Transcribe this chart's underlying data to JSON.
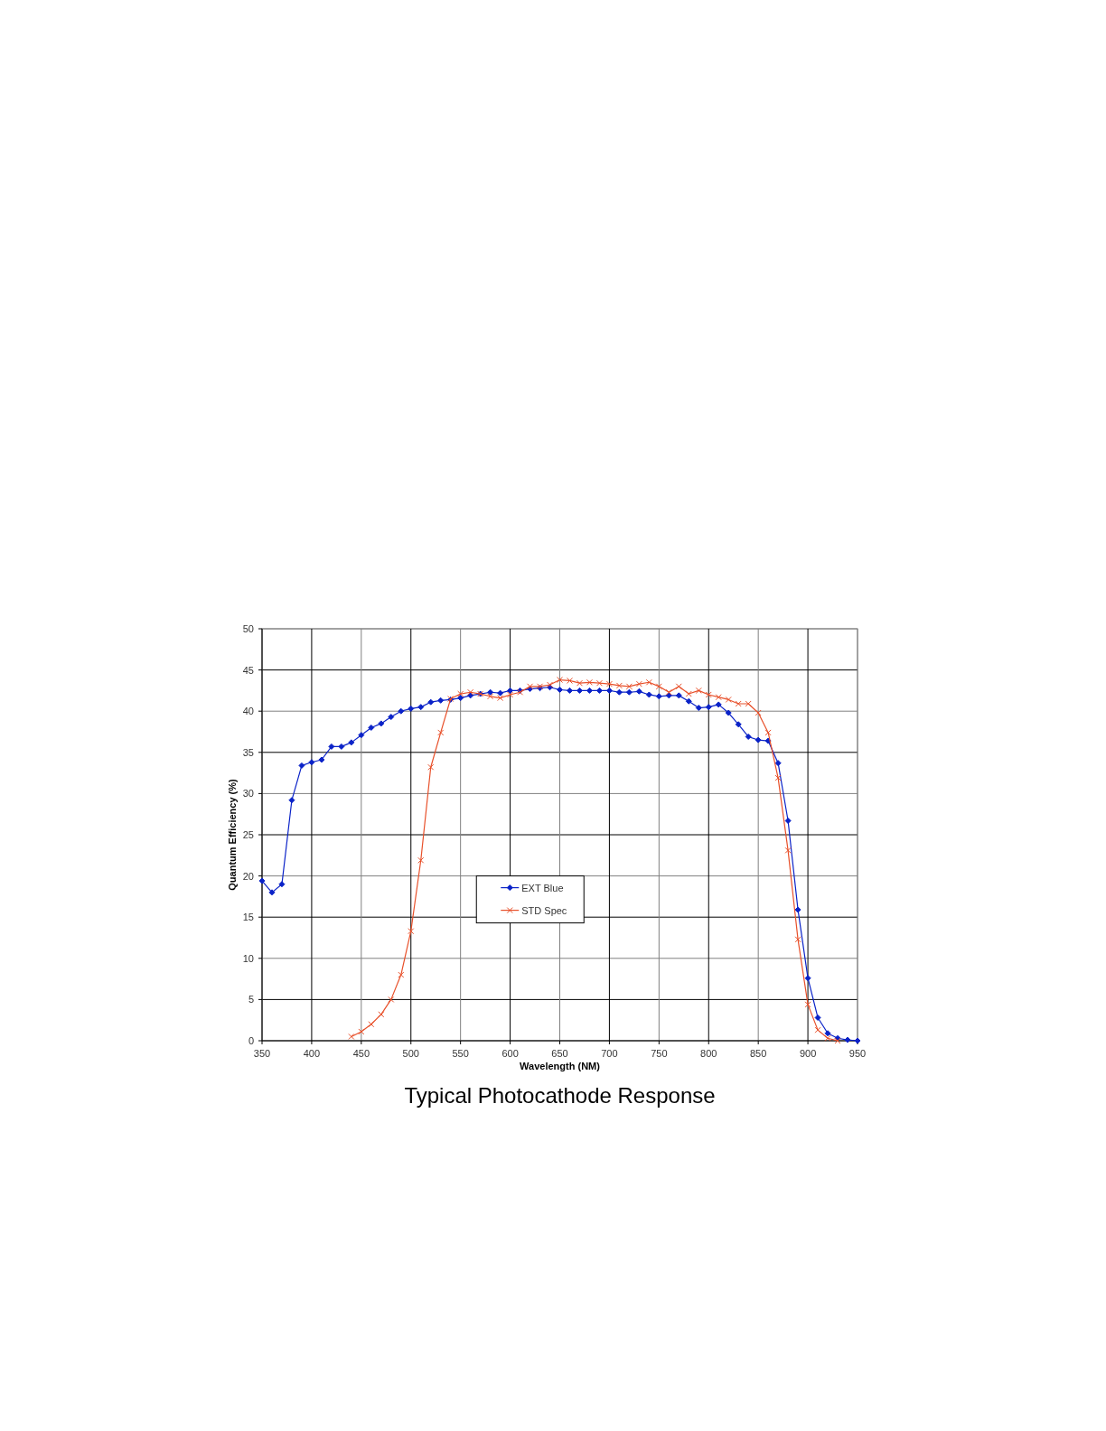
{
  "chart_data": {
    "type": "line",
    "title": "Typical Photocathode Response",
    "xlabel": "Wavelength (NM)",
    "ylabel": "Quantum Efficiency (%)",
    "xlim": [
      350,
      950
    ],
    "xticks": [
      350,
      400,
      450,
      500,
      550,
      600,
      650,
      700,
      750,
      800,
      850,
      900,
      950
    ],
    "ylim": [
      0,
      50
    ],
    "yticks": [
      0,
      5,
      10,
      15,
      20,
      25,
      30,
      35,
      40,
      45,
      50
    ],
    "grid": true,
    "legend": "center",
    "line_style": "solid",
    "series": [
      {
        "name": "EXT Blue",
        "color": "#0a22c8",
        "marker": "diamond",
        "x": [
          350,
          360,
          370,
          380,
          390,
          400,
          410,
          420,
          430,
          440,
          450,
          460,
          470,
          480,
          490,
          500,
          510,
          520,
          530,
          540,
          550,
          560,
          570,
          580,
          590,
          600,
          610,
          620,
          630,
          640,
          650,
          660,
          670,
          680,
          690,
          700,
          710,
          720,
          730,
          740,
          750,
          760,
          770,
          780,
          790,
          800,
          810,
          820,
          830,
          840,
          850,
          860,
          870,
          880,
          890,
          900,
          910,
          920,
          930,
          940,
          950
        ],
        "values": [
          19.4,
          18.0,
          19.0,
          29.2,
          33.4,
          33.8,
          34.1,
          35.7,
          35.7,
          36.2,
          37.1,
          38.0,
          38.5,
          39.3,
          40.0,
          40.3,
          40.5,
          41.1,
          41.3,
          41.4,
          41.6,
          41.9,
          42.1,
          42.3,
          42.2,
          42.5,
          42.5,
          42.7,
          42.8,
          42.9,
          42.6,
          42.5,
          42.5,
          42.5,
          42.5,
          42.5,
          42.3,
          42.3,
          42.4,
          42.0,
          41.8,
          41.9,
          41.9,
          41.2,
          40.4,
          40.5,
          40.8,
          39.8,
          38.4,
          36.9,
          36.5,
          36.4,
          33.7,
          26.7,
          15.9,
          7.6,
          2.8,
          0.9,
          0.3,
          0.1,
          0
        ]
      },
      {
        "name": "STD Spec",
        "color": "#e8502a",
        "marker": "cross",
        "x": [
          440,
          450,
          460,
          470,
          480,
          490,
          500,
          510,
          520,
          530,
          540,
          550,
          560,
          570,
          580,
          590,
          600,
          610,
          620,
          630,
          640,
          650,
          660,
          670,
          680,
          690,
          700,
          710,
          720,
          730,
          740,
          750,
          760,
          770,
          780,
          790,
          800,
          810,
          820,
          830,
          840,
          850,
          860,
          870,
          880,
          890,
          900,
          910,
          920,
          930
        ],
        "values": [
          0.5,
          1.1,
          2.0,
          3.2,
          5.0,
          8.0,
          13.3,
          21.9,
          33.2,
          37.4,
          41.5,
          42.1,
          42.3,
          42.1,
          41.8,
          41.6,
          42.0,
          42.3,
          43.0,
          43.0,
          43.2,
          43.8,
          43.7,
          43.4,
          43.5,
          43.4,
          43.3,
          43.1,
          43.0,
          43.3,
          43.5,
          43.0,
          42.3,
          43.0,
          42.1,
          42.5,
          42.0,
          41.7,
          41.4,
          40.9,
          40.9,
          39.8,
          37.4,
          31.9,
          23.1,
          12.3,
          4.4,
          1.3,
          0.3,
          0
        ]
      }
    ]
  }
}
